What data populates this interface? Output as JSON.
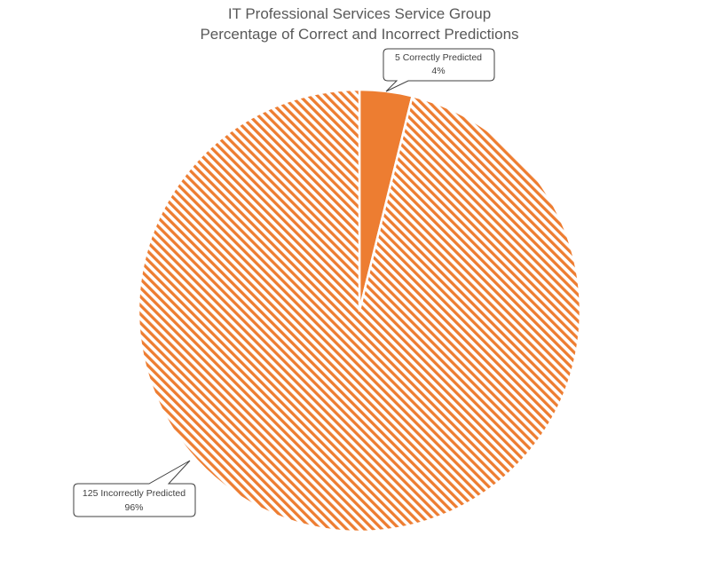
{
  "chart_data": {
    "type": "pie",
    "title": "IT Professional Services Service Group",
    "subtitle": "Percentage of Correct and Incorrect Predictions",
    "slices": [
      {
        "name": "Correctly Predicted",
        "value": 5,
        "percent": 4,
        "label_line1": "5 Correctly Predicted",
        "label_line2": "4%",
        "color": "#ED7D31",
        "fill": "solid"
      },
      {
        "name": "Incorrectly Predicted",
        "value": 125,
        "percent": 96,
        "label_line1": "125 Incorrectly Predicted",
        "label_line2": "96%",
        "color": "#ED7D31",
        "fill": "diagonal-hatch"
      }
    ],
    "start_angle": "12 o'clock",
    "direction": "clockwise",
    "legend": "none"
  }
}
